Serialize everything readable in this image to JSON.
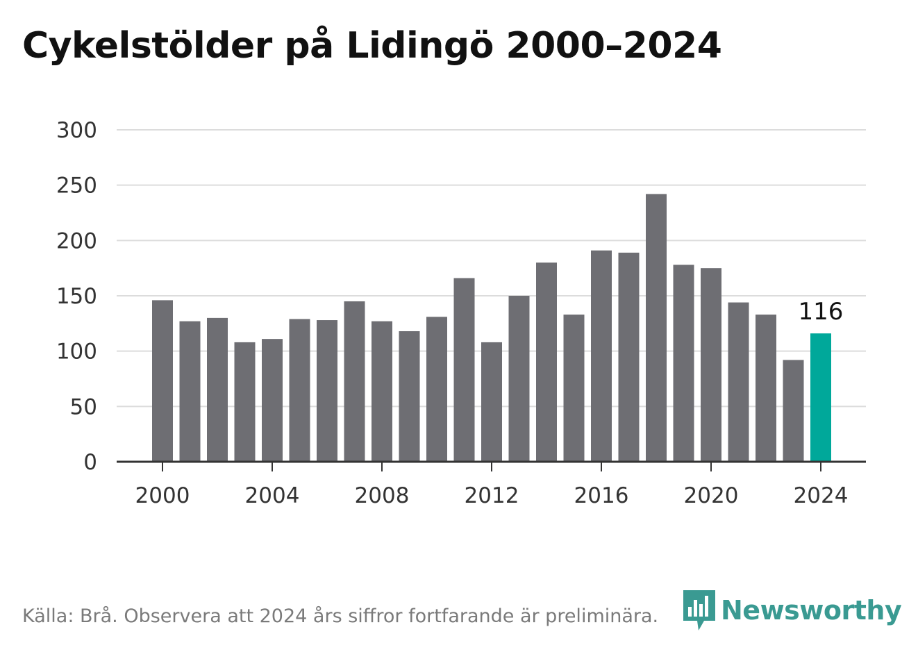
{
  "title": "Cykelstölder på Lidingö 2000–2024",
  "footer": "Källa: Brå. Observera att 2024 års siffror fortfarande är preliminära.",
  "brand": {
    "name": "Newsworthy",
    "logo_icon": "newsworthy-logo-icon"
  },
  "colors": {
    "bar": "#6e6e73",
    "highlight": "#00a89a",
    "grid": "#dcdcdc",
    "axis": "#333333",
    "brand": "#3a9a92"
  },
  "chart_data": {
    "type": "bar",
    "title": "Cykelstölder på Lidingö 2000–2024",
    "xlabel": "",
    "ylabel": "",
    "categories": [
      2000,
      2001,
      2002,
      2003,
      2004,
      2005,
      2006,
      2007,
      2008,
      2009,
      2010,
      2011,
      2012,
      2013,
      2014,
      2015,
      2016,
      2017,
      2018,
      2019,
      2020,
      2021,
      2022,
      2023,
      2024
    ],
    "values": [
      146,
      127,
      130,
      108,
      111,
      129,
      128,
      145,
      127,
      118,
      131,
      166,
      108,
      150,
      180,
      133,
      191,
      189,
      242,
      178,
      175,
      144,
      133,
      92,
      116
    ],
    "highlight": 2024,
    "data_labels": [
      {
        "x": 2024,
        "text": "116"
      }
    ],
    "x_ticks": [
      "2000",
      "2004",
      "2008",
      "2012",
      "2016",
      "2020",
      "2024"
    ],
    "y_ticks": [
      "0",
      "50",
      "100",
      "150",
      "200",
      "250",
      "300"
    ],
    "ylim": [
      0,
      300
    ],
    "grid": true,
    "legend": "none"
  }
}
